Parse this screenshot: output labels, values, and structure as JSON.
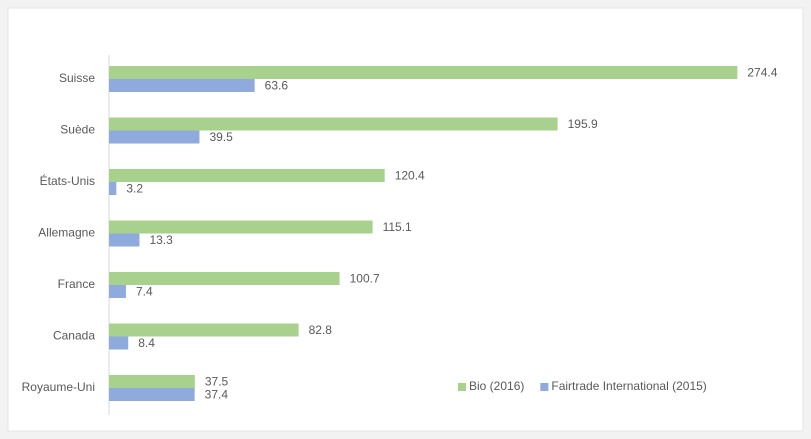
{
  "chart_data": {
    "type": "hbar",
    "categories": [
      "Suisse",
      "Suède",
      "États-Unis",
      "Allemagne",
      "France",
      "Canada",
      "Royaume-Uni"
    ],
    "series": [
      {
        "name": "Bio (2016)",
        "color": "#a9d18e",
        "values": [
          274.4,
          195.9,
          120.4,
          115.1,
          100.7,
          82.8,
          37.5
        ]
      },
      {
        "name": "Fairtrade International (2015)",
        "color": "#8faadc",
        "values": [
          63.6,
          39.5,
          3.2,
          13.3,
          7.4,
          8.4,
          37.4
        ]
      }
    ],
    "xlim": [
      0,
      300
    ],
    "legend": "lower right"
  }
}
